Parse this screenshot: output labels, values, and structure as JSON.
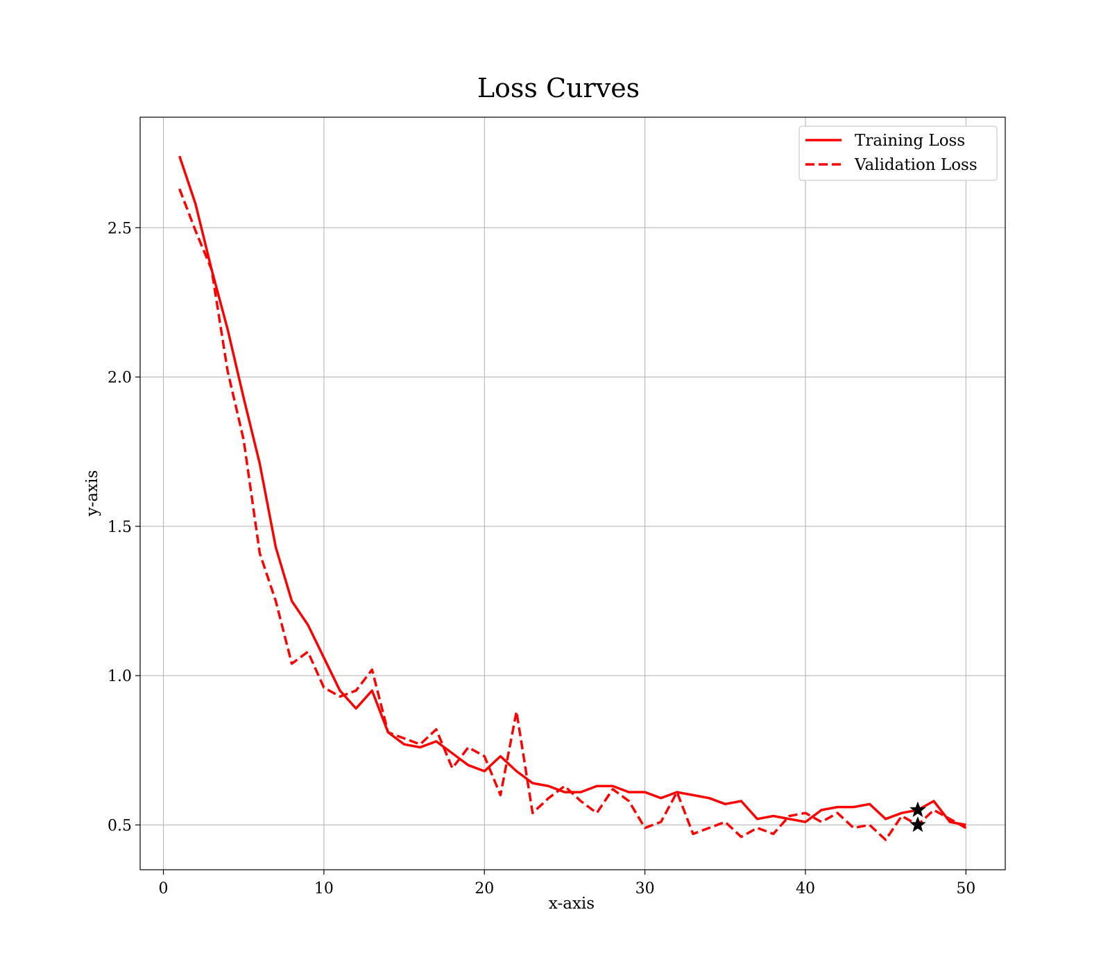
{
  "chart_data": {
    "type": "line",
    "title": "Loss Curves",
    "xlabel": "x-axis",
    "ylabel": "y-axis",
    "xlim": [
      -1.45,
      52.45
    ],
    "ylim": [
      0.35,
      2.87
    ],
    "xticks": [
      0,
      10,
      20,
      30,
      40,
      50
    ],
    "xtick_labels": [
      "0",
      "10",
      "20",
      "30",
      "40",
      "50"
    ],
    "yticks": [
      0.5,
      1.0,
      1.5,
      2.0,
      2.5
    ],
    "ytick_labels": [
      "0.5",
      "1.0",
      "1.5",
      "2.0",
      "2.5"
    ],
    "grid": true,
    "legend_position": "top-right",
    "x": [
      1,
      2,
      3,
      4,
      5,
      6,
      7,
      8,
      9,
      10,
      11,
      12,
      13,
      14,
      15,
      16,
      17,
      18,
      19,
      20,
      21,
      22,
      23,
      24,
      25,
      26,
      27,
      28,
      29,
      30,
      31,
      32,
      33,
      34,
      35,
      36,
      37,
      38,
      39,
      40,
      41,
      42,
      43,
      44,
      45,
      46,
      47,
      48,
      49,
      50
    ],
    "series": [
      {
        "name": "Training Loss",
        "style": "solid",
        "color": "#ff0000",
        "values": [
          2.74,
          2.58,
          2.36,
          2.16,
          1.93,
          1.71,
          1.43,
          1.25,
          1.17,
          1.06,
          0.95,
          0.89,
          0.95,
          0.81,
          0.77,
          0.76,
          0.78,
          0.74,
          0.7,
          0.68,
          0.73,
          0.68,
          0.64,
          0.63,
          0.61,
          0.61,
          0.63,
          0.63,
          0.61,
          0.61,
          0.59,
          0.61,
          0.6,
          0.59,
          0.57,
          0.58,
          0.52,
          0.53,
          0.52,
          0.51,
          0.55,
          0.56,
          0.56,
          0.57,
          0.52,
          0.54,
          0.55,
          0.58,
          0.51,
          0.5
        ]
      },
      {
        "name": "Validation Loss",
        "style": "dashed",
        "color": "#ff0000",
        "values": [
          2.63,
          2.49,
          2.36,
          2.02,
          1.79,
          1.41,
          1.25,
          1.04,
          1.08,
          0.96,
          0.93,
          0.95,
          1.02,
          0.81,
          0.79,
          0.77,
          0.82,
          0.69,
          0.76,
          0.73,
          0.6,
          0.88,
          0.54,
          0.59,
          0.63,
          0.58,
          0.54,
          0.62,
          0.58,
          0.49,
          0.51,
          0.61,
          0.47,
          0.49,
          0.51,
          0.46,
          0.49,
          0.47,
          0.53,
          0.54,
          0.51,
          0.54,
          0.49,
          0.5,
          0.45,
          0.53,
          0.5,
          0.55,
          0.52,
          0.49
        ]
      }
    ],
    "markers": [
      {
        "x": 47,
        "y": 0.55,
        "symbol": "star",
        "color": "#000000"
      },
      {
        "x": 47,
        "y": 0.5,
        "symbol": "star",
        "color": "#000000"
      }
    ]
  }
}
